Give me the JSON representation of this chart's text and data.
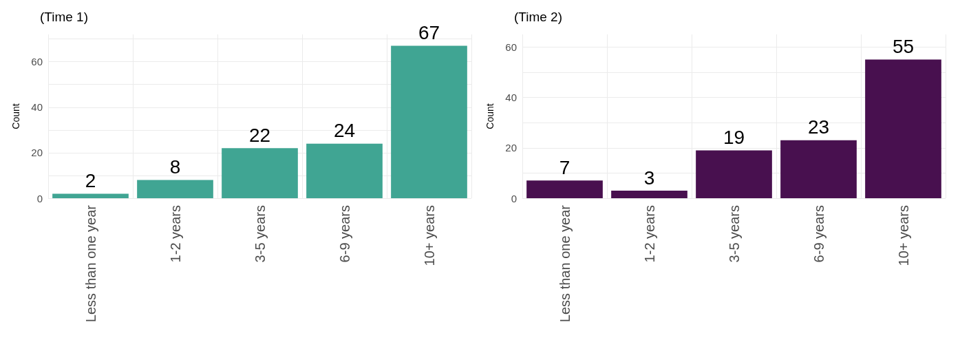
{
  "chart_data": [
    {
      "type": "bar",
      "title": "(Time 1)",
      "ylabel": "Count",
      "categories": [
        "Less than one year",
        "1-2 years",
        "3-5 years",
        "6-9 years",
        "10+ years"
      ],
      "values": [
        2,
        8,
        22,
        24,
        67
      ],
      "color": "#40a593",
      "ylim": [
        0,
        72
      ],
      "yticks": [
        0,
        {
          "value": 10,
          "label": null
        },
        20,
        {
          "value": 30,
          "label": null
        },
        40,
        {
          "value": 50,
          "label": null
        },
        60,
        {
          "value": 70,
          "label": null
        }
      ],
      "grid": true,
      "data_labels": true
    },
    {
      "type": "bar",
      "title": "(Time 2)",
      "ylabel": "Count",
      "categories": [
        "Less than one year",
        "1-2 years",
        "3-5 years",
        "6-9 years",
        "10+ years"
      ],
      "values": [
        7,
        3,
        19,
        23,
        55
      ],
      "color": "#48104f",
      "ylim": [
        0,
        65
      ],
      "yticks": [
        0,
        {
          "value": 10,
          "label": null
        },
        20,
        {
          "value": 30,
          "label": null
        },
        40,
        {
          "value": 50,
          "label": null
        },
        60
      ],
      "grid": true,
      "data_labels": true
    }
  ]
}
